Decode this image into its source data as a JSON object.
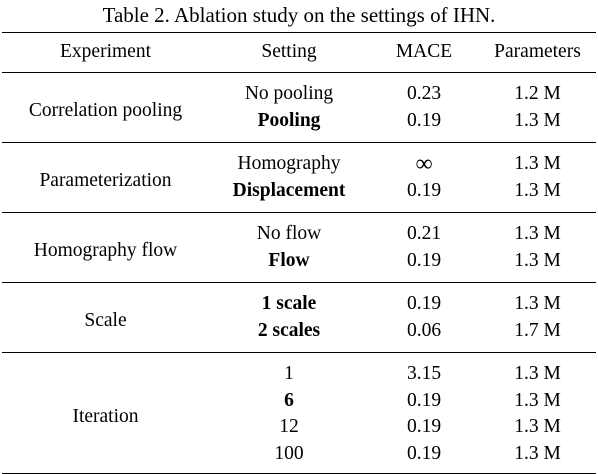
{
  "caption": "Table 2. Ablation study on the settings of IHN.",
  "table": {
    "headers": [
      "Experiment",
      "Setting",
      "MACE",
      "Parameters"
    ],
    "groups": [
      {
        "experiment": "Correlation pooling",
        "rows": [
          {
            "setting": "No pooling",
            "mace": "0.23",
            "params": "1.2 M",
            "bold": false
          },
          {
            "setting": "Pooling",
            "mace": "0.19",
            "params": "1.3 M",
            "bold": true
          }
        ]
      },
      {
        "experiment": "Parameterization",
        "rows": [
          {
            "setting": "Homography",
            "mace": "∞",
            "params": "1.3 M",
            "bold": false
          },
          {
            "setting": "Displacement",
            "mace": "0.19",
            "params": "1.3 M",
            "bold": true
          }
        ]
      },
      {
        "experiment": "Homography flow",
        "rows": [
          {
            "setting": "No flow",
            "mace": "0.21",
            "params": "1.3 M",
            "bold": false
          },
          {
            "setting": "Flow",
            "mace": "0.19",
            "params": "1.3 M",
            "bold": true
          }
        ]
      },
      {
        "experiment": "Scale",
        "rows": [
          {
            "setting": "1 scale",
            "mace": "0.19",
            "params": "1.3 M",
            "bold": true
          },
          {
            "setting": "2 scales",
            "mace": "0.06",
            "params": "1.7 M",
            "bold": true
          }
        ]
      },
      {
        "experiment": "Iteration",
        "rows": [
          {
            "setting": "1",
            "mace": "3.15",
            "params": "1.3 M",
            "bold": false
          },
          {
            "setting": "6",
            "mace": "0.19",
            "params": "1.3 M",
            "bold": true
          },
          {
            "setting": "12",
            "mace": "0.19",
            "params": "1.3 M",
            "bold": false
          },
          {
            "setting": "100",
            "mace": "0.19",
            "params": "1.3 M",
            "bold": false
          }
        ]
      }
    ]
  }
}
